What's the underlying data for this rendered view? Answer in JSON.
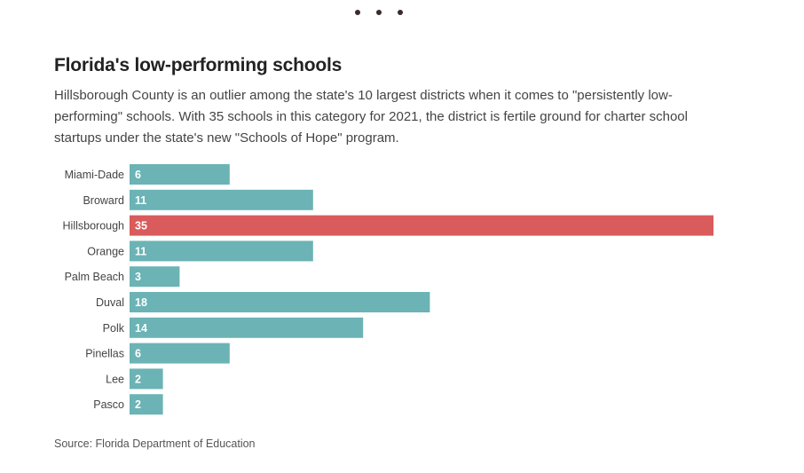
{
  "header": {
    "title": "Florida's low-performing schools",
    "subtitle": "Hillsborough County is an outlier among the state's 10 largest districts when it comes to \"persistently low-performing\" schools. With 35 schools in this category for 2021, the district is fertile ground for charter school startups under the state's new \"Schools of Hope\" program."
  },
  "footer": {
    "source": "Source: Florida Department of Education"
  },
  "colors": {
    "default_bar": "#6bb3b5",
    "highlight_bar": "#d95b5b",
    "bar_label": "#ffffff",
    "category_label": "#444444"
  },
  "chart_data": {
    "type": "bar",
    "orientation": "horizontal",
    "title": "Florida's low-performing schools",
    "categories": [
      "Miami-Dade",
      "Broward",
      "Hillsborough",
      "Orange",
      "Palm Beach",
      "Duval",
      "Polk",
      "Pinellas",
      "Lee",
      "Pasco"
    ],
    "values": [
      6,
      11,
      35,
      11,
      3,
      18,
      14,
      6,
      2,
      2
    ],
    "highlight": "Hillsborough",
    "xlim": [
      0,
      35
    ],
    "grid": false,
    "data_labels": true
  }
}
